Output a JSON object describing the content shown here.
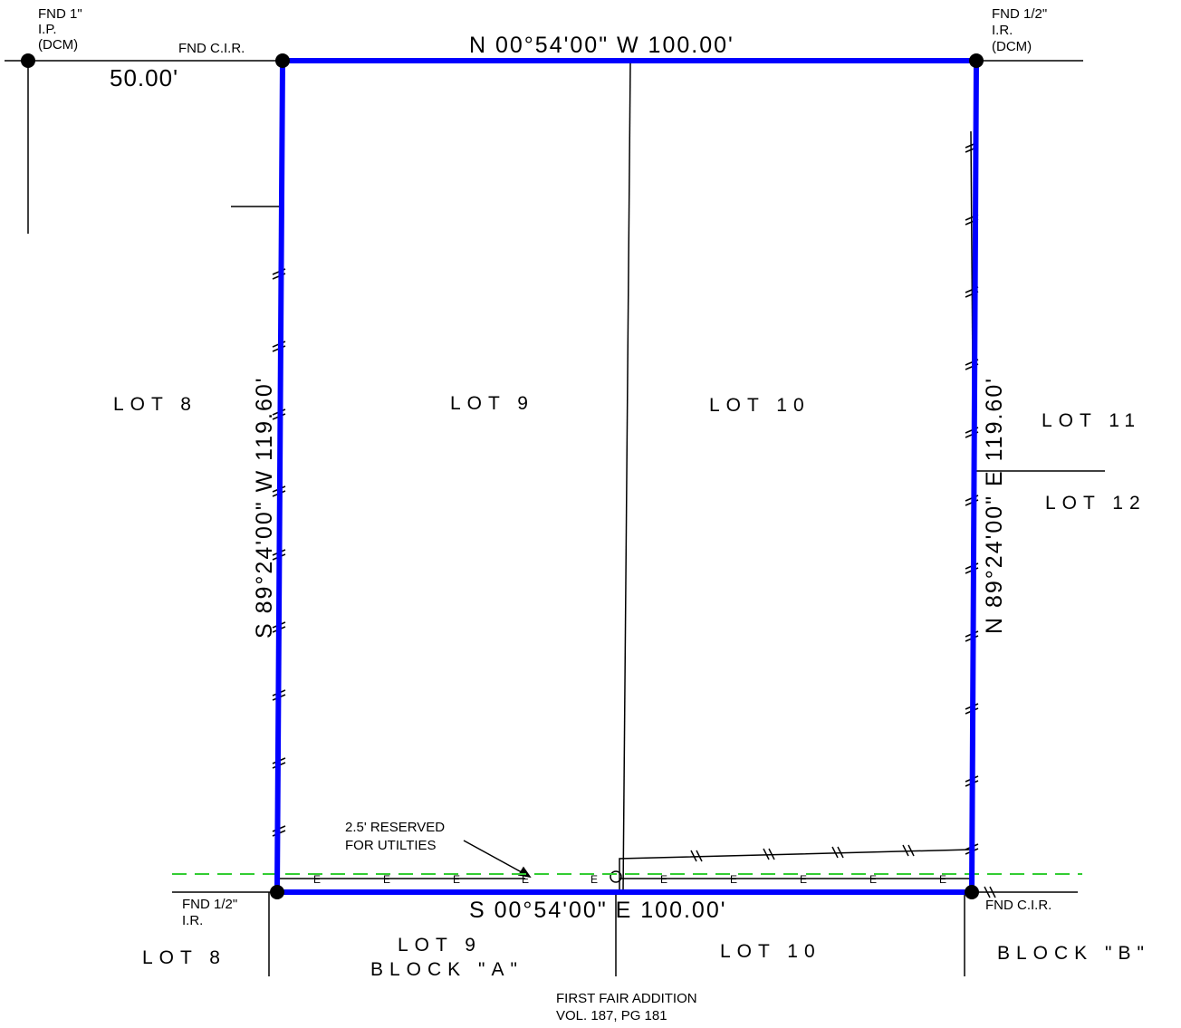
{
  "colors": {
    "boundary": "#0000ff",
    "easement": "#33cc33",
    "linework": "#000000",
    "background": "#ffffff"
  },
  "monuments": {
    "nw_far": [
      "FND 1\"",
      "I.P.",
      "(DCM)"
    ],
    "nw": "FND C.I.R.",
    "ne": [
      "FND 1/2\"",
      "I.R.",
      "(DCM)"
    ],
    "sw": [
      "FND 1/2\"",
      "I.R."
    ],
    "se": "FND C.I.R."
  },
  "bearings": {
    "north": "N 00°54'00\" W   100.00'",
    "south": "S 00°54'00\" E   100.00'",
    "west": "S 89°24'00\" W   119.60'",
    "east": "N 89°24'00\" E   119.60'",
    "offset": "50.00'"
  },
  "lots": {
    "lot8_upper": "LOT 8",
    "lot9_upper": "LOT 9",
    "lot10_upper": "LOT 10",
    "lot11": "LOT 11",
    "lot12": "LOT 12",
    "lot8_lower": "LOT 8",
    "lot9_lower": "LOT 9",
    "block_a": "BLOCK \"A\"",
    "lot10_lower": "LOT 10",
    "block_b": "BLOCK \"B\""
  },
  "notes": {
    "utility_reserve": [
      "2.5' RESERVED",
      "FOR UTILTIES"
    ],
    "addition": [
      "FIRST FAIR ADDITION",
      "VOL. 187, PG 181"
    ]
  },
  "easement_marker": "E"
}
